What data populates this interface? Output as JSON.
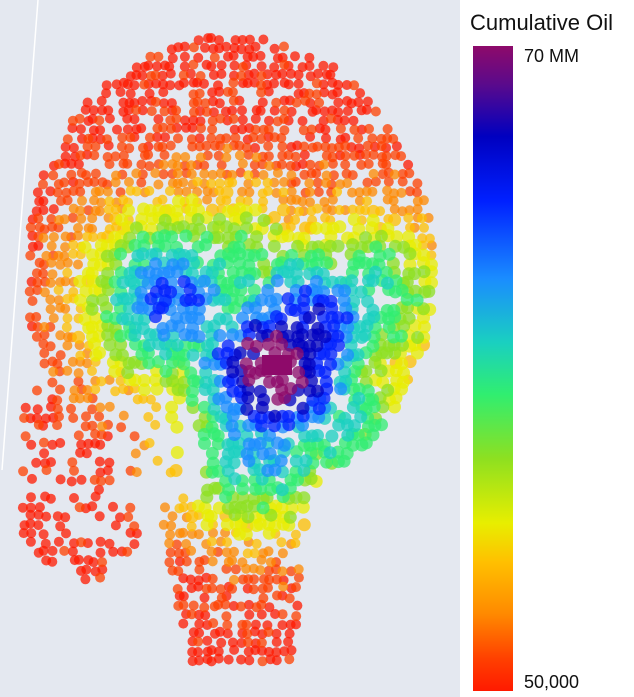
{
  "legend": {
    "title": "Cumulative Oil",
    "max_label": "70 MM",
    "min_label": "50,000",
    "colors": [
      "#8e0a6a",
      "#0000c0",
      "#0020ff",
      "#1a8cff",
      "#1ad0c0",
      "#30ee70",
      "#8ee020",
      "#e8ee00",
      "#ffc000",
      "#ff8a00",
      "#ff4000",
      "#ff1a00"
    ]
  },
  "map": {
    "background": "#e4e8f0",
    "point_opacity": 0.75
  }
}
